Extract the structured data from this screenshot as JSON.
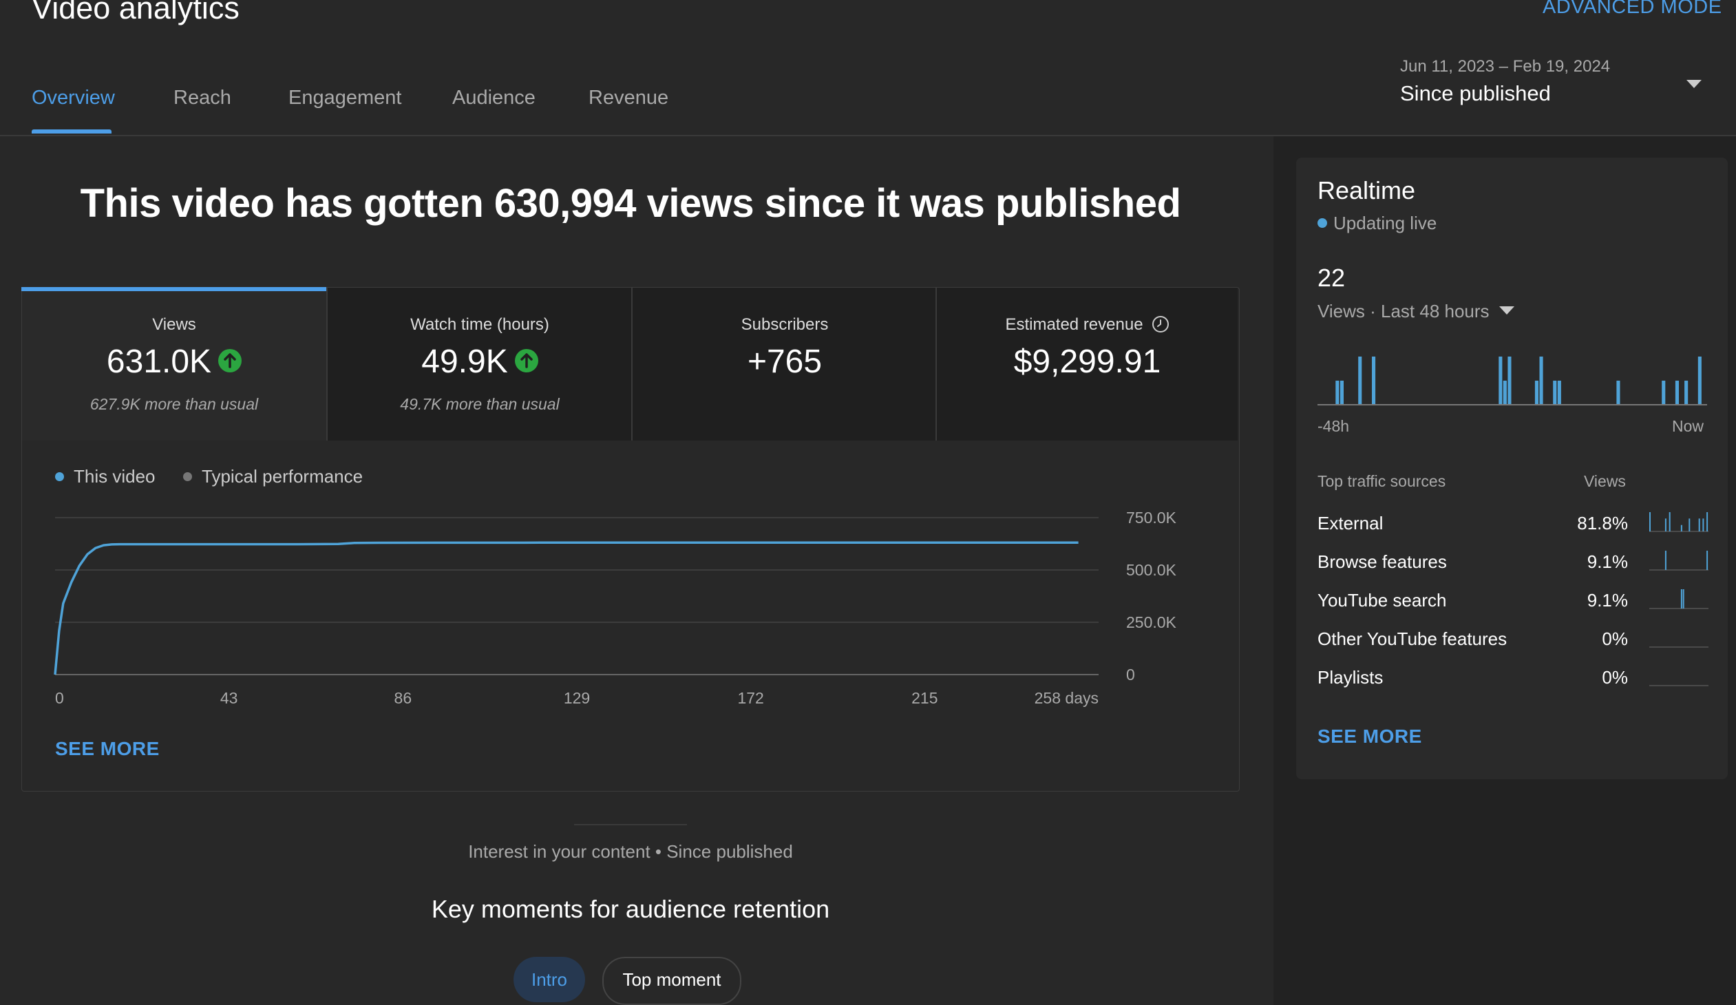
{
  "header": {
    "title": "Video analytics",
    "advanced_mode": "ADVANCED MODE",
    "tabs": [
      {
        "label": "Overview",
        "active": true
      },
      {
        "label": "Reach"
      },
      {
        "label": "Engagement"
      },
      {
        "label": "Audience"
      },
      {
        "label": "Revenue"
      }
    ],
    "date_range": "Jun 11, 2023 – Feb 19, 2024",
    "date_label": "Since published"
  },
  "main": {
    "headline": "This video has gotten 630,994 views since it was published",
    "metrics": [
      {
        "label": "Views",
        "value": "631.0K",
        "note": "627.9K more than usual",
        "trend": "up"
      },
      {
        "label": "Watch time (hours)",
        "value": "49.9K",
        "note": "49.7K more than usual",
        "trend": "up"
      },
      {
        "label": "Subscribers",
        "value": "+765",
        "note": ""
      },
      {
        "label": "Estimated revenue",
        "value": "$9,299.91",
        "note": ""
      }
    ],
    "legend": [
      {
        "label": "This video",
        "color": "#4fa3d8"
      },
      {
        "label": "Typical performance",
        "color": "#777777"
      }
    ],
    "see_more": "SEE MORE",
    "interest": "Interest in your content • Since published",
    "key_moments": "Key moments for audience retention",
    "chips": [
      "Intro",
      "Top moment"
    ]
  },
  "chart_data": [
    {
      "type": "line",
      "series": [
        {
          "name": "This video",
          "x": [
            0,
            1,
            2,
            4,
            6,
            8,
            10,
            12,
            14,
            16,
            20,
            40,
            60,
            70,
            74,
            80,
            120,
            172,
            215,
            253
          ],
          "y": [
            0,
            210000,
            340000,
            440000,
            520000,
            575000,
            605000,
            618000,
            622000,
            623000,
            623000,
            623000,
            623000,
            624000,
            629000,
            630000,
            630500,
            630800,
            631000,
            631000
          ]
        }
      ],
      "x_ticks": [
        "0",
        "43",
        "86",
        "129",
        "172",
        "215",
        "258 days"
      ],
      "y_ticks": [
        "750.0K",
        "500.0K",
        "250.0K",
        "0"
      ],
      "xlim": [
        0,
        258
      ],
      "ylim": [
        0,
        750000
      ],
      "grid": true,
      "color": "#4fa3d8"
    },
    {
      "type": "bar",
      "title": "Realtime views, last 48 hours",
      "x_labels": [
        "-48h",
        "Now"
      ],
      "values": [
        0,
        0,
        0,
        0,
        2,
        2,
        0,
        0,
        0,
        4,
        0,
        0,
        4,
        0,
        0,
        0,
        0,
        0,
        0,
        0,
        0,
        0,
        0,
        0,
        0,
        0,
        0,
        0,
        0,
        0,
        0,
        0,
        0,
        0,
        0,
        0,
        0,
        0,
        0,
        0,
        4,
        2,
        4,
        0,
        0,
        0,
        0,
        0,
        2,
        4,
        0,
        0,
        2,
        2,
        0,
        0,
        0,
        0,
        0,
        0,
        0,
        0,
        0,
        0,
        0,
        0,
        2,
        0,
        0,
        0,
        0,
        0,
        0,
        0,
        0,
        0,
        2,
        0,
        0,
        2,
        0,
        2,
        0,
        0,
        4,
        0
      ],
      "color": "#4fa3d8"
    }
  ],
  "realtime": {
    "title": "Realtime",
    "updating": "Updating live",
    "count": "22",
    "views_label": "Views · Last 48 hours",
    "axis_start": "-48h",
    "axis_end": "Now",
    "traffic_header": "Top traffic sources",
    "traffic_views_header": "Views",
    "sources": [
      {
        "name": "External",
        "pct": "81.8%",
        "spark": [
          3,
          0,
          0,
          0,
          0,
          0,
          0,
          0,
          2,
          0,
          3,
          0,
          0,
          0,
          0,
          0,
          1,
          0,
          0,
          0,
          2,
          0,
          0,
          0,
          0,
          2,
          0,
          2,
          0,
          3
        ]
      },
      {
        "name": "Browse features",
        "pct": "9.1%",
        "spark": [
          0,
          0,
          0,
          0,
          0,
          0,
          0,
          0,
          1,
          0,
          0,
          0,
          0,
          0,
          0,
          0,
          0,
          0,
          0,
          0,
          0,
          0,
          0,
          0,
          0,
          0,
          0,
          0,
          0,
          1
        ]
      },
      {
        "name": "YouTube search",
        "pct": "9.1%",
        "spark": [
          0,
          0,
          0,
          0,
          0,
          0,
          0,
          0,
          0,
          0,
          0,
          0,
          0,
          0,
          0,
          0,
          1,
          1,
          0,
          0,
          0,
          0,
          0,
          0,
          0,
          0,
          0,
          0,
          0,
          0
        ]
      },
      {
        "name": "Other YouTube features",
        "pct": "0%",
        "spark": []
      },
      {
        "name": "Playlists",
        "pct": "0%",
        "spark": []
      }
    ],
    "see_more": "SEE MORE"
  }
}
